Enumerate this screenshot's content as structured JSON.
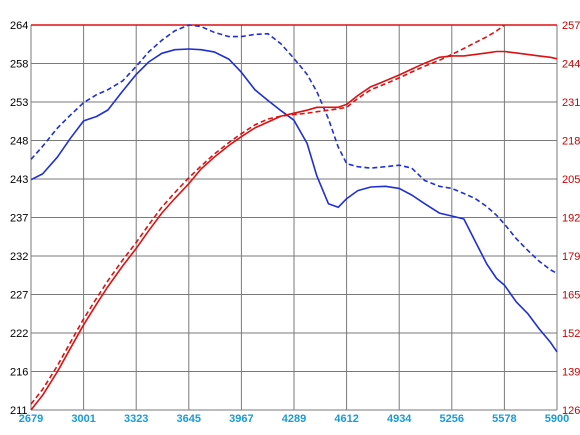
{
  "chart_data": {
    "type": "line",
    "title": "",
    "xlabel": "",
    "ylabel": "",
    "x_ticks": [
      "2679",
      "3001",
      "3323",
      "3645",
      "3967",
      "4289",
      "4612",
      "4934",
      "5256",
      "5578",
      "5900"
    ],
    "left_ticks": [
      "264",
      "258",
      "253",
      "248",
      "243",
      "237",
      "232",
      "227",
      "222",
      "216",
      "211"
    ],
    "right_ticks": [
      "257",
      "244",
      "231",
      "218",
      "205",
      "192",
      "179",
      "165",
      "152",
      "139",
      "126"
    ],
    "xlim": [
      2679,
      5900
    ],
    "ylim_left": [
      211,
      264
    ],
    "ylim_right": [
      126,
      257
    ],
    "grid": true,
    "colors": {
      "left_axis": "#1f2fd6",
      "right_axis": "#dd1111",
      "grid": "#7a7a7a",
      "x_ticks": "#1a9bd7",
      "right_ticks": "#cc0000"
    },
    "series": [
      {
        "axis": "left",
        "color": "#1f2fd6",
        "style": "solid",
        "points": [
          [
            2679,
            242.7
          ],
          [
            2750,
            243.5
          ],
          [
            2840,
            245.8
          ],
          [
            2920,
            248.4
          ],
          [
            3001,
            250.8
          ],
          [
            3080,
            251.4
          ],
          [
            3150,
            252.3
          ],
          [
            3240,
            254.9
          ],
          [
            3323,
            257.2
          ],
          [
            3400,
            258.9
          ],
          [
            3480,
            260.1
          ],
          [
            3560,
            260.6
          ],
          [
            3645,
            260.7
          ],
          [
            3720,
            260.6
          ],
          [
            3800,
            260.3
          ],
          [
            3890,
            259.3
          ],
          [
            3967,
            257.5
          ],
          [
            4050,
            255.1
          ],
          [
            4130,
            253.6
          ],
          [
            4210,
            252.2
          ],
          [
            4289,
            250.9
          ],
          [
            4370,
            247.7
          ],
          [
            4430,
            243.2
          ],
          [
            4500,
            239.4
          ],
          [
            4560,
            238.9
          ],
          [
            4612,
            240.1
          ],
          [
            4680,
            241.2
          ],
          [
            4760,
            241.7
          ],
          [
            4850,
            241.8
          ],
          [
            4934,
            241.5
          ],
          [
            5010,
            240.6
          ],
          [
            5090,
            239.4
          ],
          [
            5180,
            238.1
          ],
          [
            5256,
            237.7
          ],
          [
            5330,
            237.3
          ],
          [
            5400,
            234.2
          ],
          [
            5470,
            231.1
          ],
          [
            5530,
            229.1
          ],
          [
            5578,
            228.2
          ],
          [
            5650,
            225.9
          ],
          [
            5720,
            224.3
          ],
          [
            5790,
            222.2
          ],
          [
            5860,
            220.3
          ],
          [
            5900,
            219.0
          ]
        ]
      },
      {
        "axis": "left",
        "color": "#1f2fd6",
        "style": "dashed",
        "points": [
          [
            2679,
            245.5
          ],
          [
            2750,
            247.3
          ],
          [
            2840,
            249.8
          ],
          [
            2920,
            251.6
          ],
          [
            3001,
            253.3
          ],
          [
            3080,
            254.4
          ],
          [
            3150,
            255.1
          ],
          [
            3240,
            256.3
          ],
          [
            3323,
            258.3
          ],
          [
            3400,
            260.3
          ],
          [
            3480,
            261.9
          ],
          [
            3560,
            263.2
          ],
          [
            3645,
            264.0
          ],
          [
            3720,
            263.8
          ],
          [
            3800,
            263.0
          ],
          [
            3890,
            262.4
          ],
          [
            3967,
            262.4
          ],
          [
            4050,
            262.7
          ],
          [
            4130,
            262.8
          ],
          [
            4210,
            261.4
          ],
          [
            4289,
            259.4
          ],
          [
            4370,
            257.2
          ],
          [
            4430,
            254.8
          ],
          [
            4500,
            251.1
          ],
          [
            4560,
            247.2
          ],
          [
            4612,
            244.9
          ],
          [
            4680,
            244.5
          ],
          [
            4760,
            244.3
          ],
          [
            4850,
            244.5
          ],
          [
            4934,
            244.7
          ],
          [
            5010,
            244.3
          ],
          [
            5090,
            242.6
          ],
          [
            5180,
            241.8
          ],
          [
            5256,
            241.5
          ],
          [
            5330,
            240.8
          ],
          [
            5400,
            240.1
          ],
          [
            5470,
            239.0
          ],
          [
            5530,
            237.8
          ],
          [
            5578,
            236.6
          ],
          [
            5650,
            234.6
          ],
          [
            5720,
            233.0
          ],
          [
            5790,
            231.5
          ],
          [
            5860,
            230.3
          ],
          [
            5900,
            229.8
          ]
        ]
      },
      {
        "axis": "right",
        "color": "#dd1111",
        "style": "solid",
        "points": [
          [
            2679,
            126
          ],
          [
            2750,
            131
          ],
          [
            2840,
            139
          ],
          [
            2920,
            147
          ],
          [
            3001,
            155
          ],
          [
            3080,
            162
          ],
          [
            3150,
            168
          ],
          [
            3240,
            175
          ],
          [
            3323,
            181
          ],
          [
            3400,
            187
          ],
          [
            3480,
            193
          ],
          [
            3560,
            198
          ],
          [
            3645,
            203
          ],
          [
            3720,
            208
          ],
          [
            3800,
            212
          ],
          [
            3890,
            216
          ],
          [
            3967,
            219
          ],
          [
            4050,
            222
          ],
          [
            4130,
            224
          ],
          [
            4210,
            226
          ],
          [
            4289,
            227
          ],
          [
            4370,
            228
          ],
          [
            4430,
            229
          ],
          [
            4500,
            229
          ],
          [
            4560,
            229
          ],
          [
            4612,
            230
          ],
          [
            4680,
            233
          ],
          [
            4760,
            236
          ],
          [
            4850,
            238
          ],
          [
            4934,
            240
          ],
          [
            5010,
            242
          ],
          [
            5090,
            244
          ],
          [
            5180,
            246
          ],
          [
            5256,
            246.5
          ],
          [
            5330,
            246.5
          ],
          [
            5400,
            247
          ],
          [
            5470,
            247.5
          ],
          [
            5530,
            248
          ],
          [
            5578,
            248
          ],
          [
            5650,
            247.5
          ],
          [
            5720,
            247
          ],
          [
            5790,
            246.5
          ],
          [
            5860,
            246
          ],
          [
            5900,
            245.5
          ]
        ]
      },
      {
        "axis": "right",
        "color": "#dd1111",
        "style": "dashed",
        "points": [
          [
            2679,
            128
          ],
          [
            2750,
            133
          ],
          [
            2840,
            141
          ],
          [
            2920,
            149
          ],
          [
            3001,
            157
          ],
          [
            3080,
            164
          ],
          [
            3150,
            170
          ],
          [
            3240,
            177
          ],
          [
            3323,
            183
          ],
          [
            3400,
            189
          ],
          [
            3480,
            195
          ],
          [
            3560,
            200
          ],
          [
            3645,
            205
          ],
          [
            3720,
            209
          ],
          [
            3800,
            213
          ],
          [
            3890,
            217
          ],
          [
            3967,
            220
          ],
          [
            4050,
            223
          ],
          [
            4130,
            225
          ],
          [
            4210,
            226
          ],
          [
            4289,
            226.5
          ],
          [
            4370,
            227
          ],
          [
            4430,
            227.5
          ],
          [
            4500,
            228
          ],
          [
            4560,
            228.5
          ],
          [
            4612,
            229
          ],
          [
            4680,
            232
          ],
          [
            4760,
            235
          ],
          [
            4850,
            237
          ],
          [
            4934,
            239
          ],
          [
            5010,
            241
          ],
          [
            5090,
            243
          ],
          [
            5180,
            245
          ],
          [
            5256,
            247
          ],
          [
            5330,
            249
          ],
          [
            5400,
            251
          ],
          [
            5470,
            253
          ],
          [
            5530,
            255
          ],
          [
            5578,
            257
          ]
        ]
      }
    ]
  }
}
